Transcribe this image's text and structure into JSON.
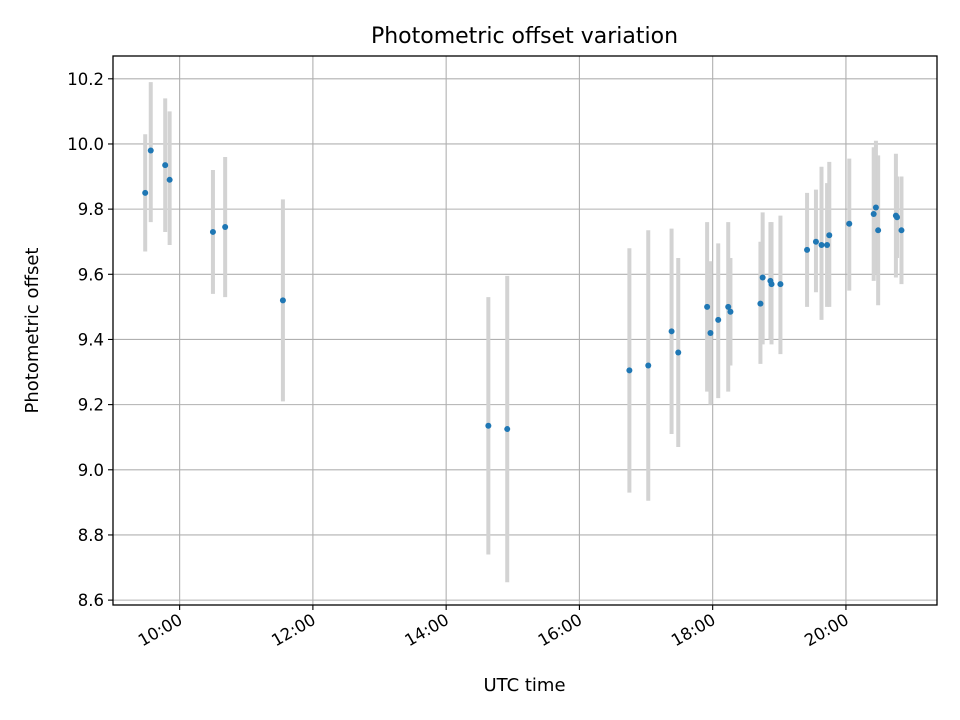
{
  "chart_data": {
    "type": "scatter",
    "title": "Photometric offset variation",
    "xlabel": "UTC time",
    "ylabel": "Photometric offset",
    "x_axis": "time",
    "xlim": [
      "09:00",
      "21:22"
    ],
    "ylim": [
      8.585,
      10.27
    ],
    "xticks": [
      "10:00",
      "12:00",
      "14:00",
      "16:00",
      "18:00",
      "20:00"
    ],
    "yticks": [
      8.6,
      8.8,
      9.0,
      9.2,
      9.4,
      9.6,
      9.8,
      10.0,
      10.2
    ],
    "ytick_labels": [
      "8.6",
      "8.8",
      "9.0",
      "9.2",
      "9.4",
      "9.6",
      "9.8",
      "10.0",
      "10.2"
    ],
    "grid": true,
    "colors": {
      "marker": "#1f77b4",
      "errorbar": "#d3d3d3",
      "grid": "#b0b0b0"
    },
    "series": [
      {
        "points": [
          {
            "x": "09:29",
            "y": 9.85,
            "err_low": 9.67,
            "err_high": 10.03
          },
          {
            "x": "09:34",
            "y": 9.98,
            "err_low": 9.76,
            "err_high": 10.19
          },
          {
            "x": "09:47",
            "y": 9.935,
            "err_low": 9.73,
            "err_high": 10.14
          },
          {
            "x": "09:51",
            "y": 9.89,
            "err_low": 9.69,
            "err_high": 10.1
          },
          {
            "x": "10:30",
            "y": 9.73,
            "err_low": 9.54,
            "err_high": 9.92
          },
          {
            "x": "10:41",
            "y": 9.745,
            "err_low": 9.53,
            "err_high": 9.96
          },
          {
            "x": "11:33",
            "y": 9.52,
            "err_low": 9.21,
            "err_high": 9.83
          },
          {
            "x": "14:38",
            "y": 9.135,
            "err_low": 8.74,
            "err_high": 9.53
          },
          {
            "x": "14:55",
            "y": 9.125,
            "err_low": 8.655,
            "err_high": 9.595
          },
          {
            "x": "16:45",
            "y": 9.305,
            "err_low": 8.93,
            "err_high": 9.68
          },
          {
            "x": "17:02",
            "y": 9.32,
            "err_low": 8.905,
            "err_high": 9.735
          },
          {
            "x": "17:23",
            "y": 9.425,
            "err_low": 9.11,
            "err_high": 9.74
          },
          {
            "x": "17:29",
            "y": 9.36,
            "err_low": 9.07,
            "err_high": 9.65
          },
          {
            "x": "17:55",
            "y": 9.5,
            "err_low": 9.24,
            "err_high": 9.76
          },
          {
            "x": "17:58",
            "y": 9.42,
            "err_low": 9.2,
            "err_high": 9.64
          },
          {
            "x": "18:05",
            "y": 9.46,
            "err_low": 9.22,
            "err_high": 9.695
          },
          {
            "x": "18:14",
            "y": 9.5,
            "err_low": 9.24,
            "err_high": 9.76
          },
          {
            "x": "18:16",
            "y": 9.485,
            "err_low": 9.32,
            "err_high": 9.65
          },
          {
            "x": "18:43",
            "y": 9.51,
            "err_low": 9.325,
            "err_high": 9.7
          },
          {
            "x": "18:45",
            "y": 9.59,
            "err_low": 9.385,
            "err_high": 9.79
          },
          {
            "x": "18:52",
            "y": 9.58,
            "err_low": 9.4,
            "err_high": 9.76
          },
          {
            "x": "18:53",
            "y": 9.57,
            "err_low": 9.385,
            "err_high": 9.76
          },
          {
            "x": "19:01",
            "y": 9.57,
            "err_low": 9.355,
            "err_high": 9.78
          },
          {
            "x": "19:25",
            "y": 9.675,
            "err_low": 9.5,
            "err_high": 9.85
          },
          {
            "x": "19:33",
            "y": 9.7,
            "err_low": 9.545,
            "err_high": 9.86
          },
          {
            "x": "19:38",
            "y": 9.69,
            "err_low": 9.46,
            "err_high": 9.93
          },
          {
            "x": "19:43",
            "y": 9.69,
            "err_low": 9.5,
            "err_high": 9.88
          },
          {
            "x": "19:45",
            "y": 9.72,
            "err_low": 9.5,
            "err_high": 9.945
          },
          {
            "x": "20:03",
            "y": 9.755,
            "err_low": 9.55,
            "err_high": 9.955
          },
          {
            "x": "20:25",
            "y": 9.785,
            "err_low": 9.58,
            "err_high": 9.99
          },
          {
            "x": "20:27",
            "y": 9.805,
            "err_low": 9.6,
            "err_high": 10.01
          },
          {
            "x": "20:29",
            "y": 9.735,
            "err_low": 9.505,
            "err_high": 9.965
          },
          {
            "x": "20:45",
            "y": 9.78,
            "err_low": 9.59,
            "err_high": 9.97
          },
          {
            "x": "20:46",
            "y": 9.775,
            "err_low": 9.65,
            "err_high": 9.9
          },
          {
            "x": "20:50",
            "y": 9.735,
            "err_low": 9.57,
            "err_high": 9.9
          }
        ]
      }
    ]
  }
}
